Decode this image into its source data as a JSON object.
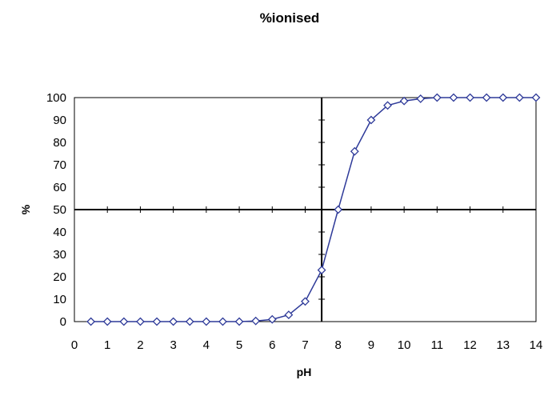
{
  "chart_data": {
    "type": "line",
    "title": "%ionised",
    "xlabel": "pH",
    "ylabel": "%",
    "xlim": [
      0,
      14
    ],
    "ylim": [
      0,
      100
    ],
    "x_ticks": [
      0,
      1,
      2,
      3,
      4,
      5,
      6,
      7,
      8,
      9,
      10,
      11,
      12,
      13,
      14
    ],
    "y_ticks": [
      0,
      10,
      20,
      30,
      40,
      50,
      60,
      70,
      80,
      90,
      100
    ],
    "reference_lines": {
      "vertical_x": 7.5,
      "horizontal_y": 50
    },
    "marker": "diamond",
    "grid": false,
    "legend": "none",
    "colors": {
      "line": "#2e3a99",
      "marker_stroke": "#2e3a99",
      "marker_fill": "#ffffff",
      "axes": "#000000",
      "plot_border": "#000000"
    },
    "series": [
      {
        "x": [
          0.5,
          1,
          1.5,
          2,
          2.5,
          3,
          3.5,
          4,
          4.5,
          5,
          5.5,
          6,
          6.5,
          7,
          7.5,
          8,
          8.5,
          9,
          9.5,
          10,
          10.5,
          11,
          11.5,
          12,
          12.5,
          13,
          13.5,
          14
        ],
        "values": [
          0,
          0,
          0,
          0,
          0,
          0,
          0,
          0,
          0,
          0,
          0.3,
          1,
          3,
          9,
          23,
          50,
          76,
          90,
          96.5,
          98.5,
          99.5,
          100,
          100,
          100,
          100,
          100,
          100,
          100
        ]
      }
    ]
  }
}
